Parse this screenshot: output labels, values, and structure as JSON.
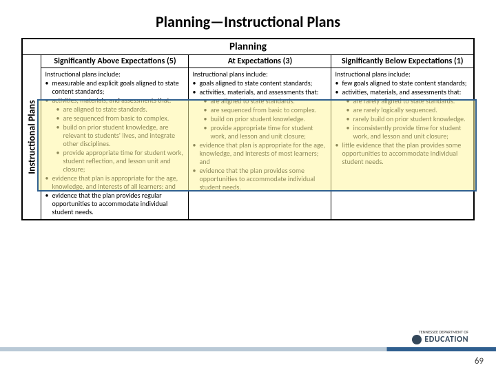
{
  "title": "Planning—Instructional Plans",
  "table": {
    "header": "Planning",
    "row_label": "Instructional Plans",
    "columns": [
      {
        "label": "Significantly Above Expectations (5)"
      },
      {
        "label": "At Expectations (3)"
      },
      {
        "label": "Significantly Below Expectations (1)"
      }
    ],
    "cells": [
      {
        "intro": "Instructional plans include:",
        "bullets": [
          {
            "t": "measurable and explicit goals aligned to state content standards;"
          },
          {
            "t": "activities, materials, and assessments that:",
            "sub": [
              "are aligned to state standards.",
              "are sequenced from basic to complex.",
              "build on prior student knowledge, are relevant to students' lives, and integrate other disciplines.",
              "provide appropriate time for student work, student reflection, and lesson unit and closure;"
            ]
          },
          {
            "t": "evidence that plan is appropriate for the age, knowledge, and interests of all learners; and"
          },
          {
            "t": "evidence that the plan provides regular opportunities to accommodate individual student needs."
          }
        ]
      },
      {
        "intro": "Instructional plans include:",
        "bullets": [
          {
            "t": "goals aligned to state content standards;"
          },
          {
            "t": "activities, materials, and assessments that:",
            "sub": [
              "are aligned to state standards.",
              "are sequenced from basic to complex.",
              "build on prior student knowledge.",
              "provide appropriate time for student work, and lesson and unit closure;"
            ]
          },
          {
            "t": "evidence that plan is appropriate for the age, knowledge, and interests of most learners; and"
          },
          {
            "t": "evidence that the plan provides some opportunities to accommodate individual student needs."
          }
        ]
      },
      {
        "intro": "Instructional plans include:",
        "bullets": [
          {
            "t": "few goals aligned to state content standards;"
          },
          {
            "t": "activities, materials, and assessments that:",
            "sub": [
              "are rarely aligned to state standards.",
              "are rarely logically sequenced.",
              "rarely build on prior student knowledge.",
              "inconsistently provide time for student work, and lesson and unit closure;"
            ]
          },
          {
            "t": "little evidence that the plan provides some opportunities to accommodate individual student needs."
          }
        ]
      }
    ]
  },
  "highlight": {
    "border_color": "#2f5f8f",
    "fill_color": "rgba(255,245,160,0.55)"
  },
  "footer": {
    "dept_small": "TENNESSEE DEPARTMENT OF",
    "dept": "EDUCATION",
    "page": "69"
  },
  "colors": {
    "bar_light": "#b9c9d6",
    "bar_dark": "#2f5f8f"
  }
}
